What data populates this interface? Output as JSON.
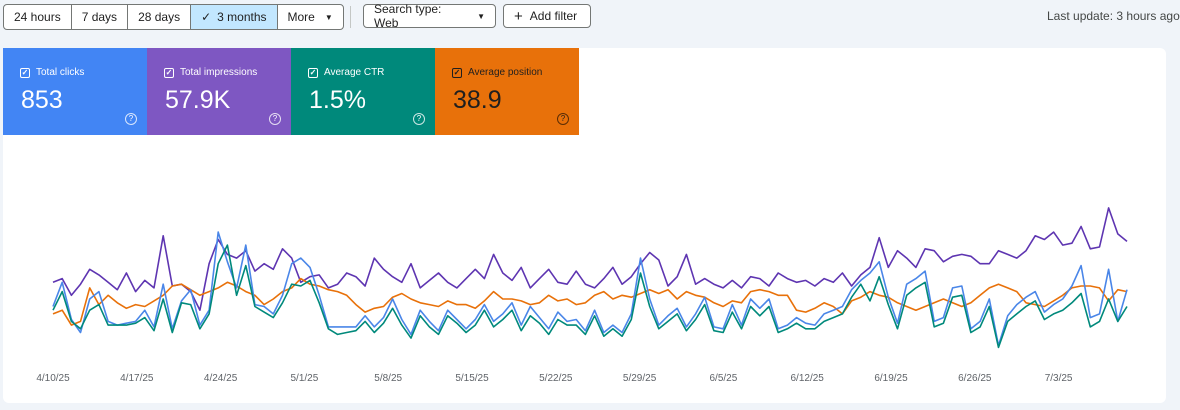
{
  "toolbar": {
    "ranges": [
      {
        "label": "24 hours",
        "selected": false
      },
      {
        "label": "7 days",
        "selected": false
      },
      {
        "label": "28 days",
        "selected": false
      },
      {
        "label": "3 months",
        "selected": true
      },
      {
        "label": "More",
        "selected": false
      }
    ],
    "search_type_label": "Search type: Web",
    "add_filter_label": "Add filter",
    "last_update": "Last update: 3 hours ago"
  },
  "metrics": [
    {
      "label": "Total clicks",
      "value": "853",
      "color": "#4285f4",
      "checked": true
    },
    {
      "label": "Total impressions",
      "value": "57.9K",
      "color": "#7e57c2",
      "checked": true
    },
    {
      "label": "Average CTR",
      "value": "1.5%",
      "color": "#00897b",
      "checked": true
    },
    {
      "label": "Average position",
      "value": "38.9",
      "color": "#e8710a",
      "checked": true
    }
  ],
  "chart_data": {
    "type": "line",
    "grid": false,
    "x_tick_labels": [
      "4/10/25",
      "4/17/25",
      "4/24/25",
      "5/1/25",
      "5/8/25",
      "5/15/25",
      "5/22/25",
      "5/29/25",
      "6/5/25",
      "6/12/25",
      "6/19/25",
      "6/26/25",
      "7/3/25"
    ],
    "series": [
      {
        "name": "Total impressions",
        "color": "#5e35b1",
        "values": [
          0.45,
          0.47,
          0.38,
          0.44,
          0.52,
          0.49,
          0.45,
          0.41,
          0.5,
          0.4,
          0.46,
          0.42,
          0.7,
          0.43,
          0.44,
          0.4,
          0.3,
          0.55,
          0.68,
          0.6,
          0.58,
          0.62,
          0.51,
          0.55,
          0.52,
          0.63,
          0.58,
          0.45,
          0.48,
          0.49,
          0.42,
          0.44,
          0.5,
          0.48,
          0.43,
          0.58,
          0.52,
          0.48,
          0.45,
          0.55,
          0.42,
          0.46,
          0.5,
          0.45,
          0.42,
          0.47,
          0.52,
          0.47,
          0.6,
          0.5,
          0.46,
          0.53,
          0.42,
          0.47,
          0.52,
          0.45,
          0.44,
          0.51,
          0.44,
          0.42,
          0.47,
          0.53,
          0.44,
          0.48,
          0.55,
          0.61,
          0.57,
          0.43,
          0.48,
          0.6,
          0.44,
          0.47,
          0.44,
          0.42,
          0.46,
          0.42,
          0.48,
          0.47,
          0.43,
          0.5,
          0.47,
          0.45,
          0.46,
          0.43,
          0.47,
          0.45,
          0.5,
          0.43,
          0.49,
          0.53,
          0.69,
          0.53,
          0.62,
          0.58,
          0.53,
          0.63,
          0.62,
          0.56,
          0.59,
          0.6,
          0.59,
          0.55,
          0.55,
          0.62,
          0.6,
          0.58,
          0.62,
          0.7,
          0.68,
          0.72,
          0.65,
          0.66,
          0.75,
          0.63,
          0.64,
          0.85,
          0.71,
          0.67
        ]
      },
      {
        "name": "Average position",
        "color": "#e8710a",
        "values": [
          0.28,
          0.3,
          0.22,
          0.24,
          0.42,
          0.33,
          0.38,
          0.34,
          0.31,
          0.33,
          0.32,
          0.35,
          0.38,
          0.43,
          0.44,
          0.41,
          0.38,
          0.4,
          0.42,
          0.45,
          0.43,
          0.4,
          0.38,
          0.33,
          0.36,
          0.4,
          0.42,
          0.47,
          0.44,
          0.43,
          0.41,
          0.4,
          0.38,
          0.33,
          0.29,
          0.31,
          0.32,
          0.37,
          0.39,
          0.36,
          0.34,
          0.33,
          0.32,
          0.35,
          0.33,
          0.33,
          0.31,
          0.35,
          0.4,
          0.36,
          0.36,
          0.35,
          0.33,
          0.34,
          0.38,
          0.35,
          0.36,
          0.33,
          0.34,
          0.38,
          0.4,
          0.36,
          0.38,
          0.37,
          0.39,
          0.41,
          0.39,
          0.41,
          0.36,
          0.4,
          0.38,
          0.37,
          0.34,
          0.32,
          0.35,
          0.34,
          0.4,
          0.41,
          0.4,
          0.38,
          0.38,
          0.3,
          0.29,
          0.31,
          0.34,
          0.32,
          0.28,
          0.35,
          0.37,
          0.4,
          0.38,
          0.37,
          0.34,
          0.32,
          0.3,
          0.32,
          0.34,
          0.36,
          0.34,
          0.32,
          0.34,
          0.38,
          0.42,
          0.44,
          0.42,
          0.4,
          0.34,
          0.33,
          0.32,
          0.35,
          0.38,
          0.42,
          0.43,
          0.43,
          0.42,
          0.35,
          0.41,
          0.4
        ]
      },
      {
        "name": "Total clicks",
        "color": "#4a86e8",
        "values": [
          0.32,
          0.45,
          0.25,
          0.18,
          0.36,
          0.4,
          0.24,
          0.22,
          0.23,
          0.24,
          0.3,
          0.21,
          0.44,
          0.2,
          0.35,
          0.41,
          0.22,
          0.3,
          0.72,
          0.56,
          0.42,
          0.65,
          0.33,
          0.32,
          0.28,
          0.38,
          0.55,
          0.58,
          0.53,
          0.38,
          0.21,
          0.21,
          0.21,
          0.21,
          0.27,
          0.21,
          0.26,
          0.36,
          0.25,
          0.17,
          0.3,
          0.24,
          0.19,
          0.3,
          0.25,
          0.2,
          0.25,
          0.33,
          0.24,
          0.28,
          0.34,
          0.22,
          0.32,
          0.26,
          0.2,
          0.29,
          0.24,
          0.25,
          0.19,
          0.3,
          0.18,
          0.22,
          0.18,
          0.28,
          0.58,
          0.36,
          0.22,
          0.27,
          0.31,
          0.21,
          0.28,
          0.37,
          0.21,
          0.2,
          0.33,
          0.22,
          0.36,
          0.31,
          0.36,
          0.2,
          0.22,
          0.26,
          0.23,
          0.22,
          0.28,
          0.3,
          0.32,
          0.41,
          0.46,
          0.5,
          0.56,
          0.37,
          0.23,
          0.44,
          0.47,
          0.51,
          0.24,
          0.26,
          0.42,
          0.43,
          0.2,
          0.24,
          0.36,
          0.11,
          0.27,
          0.33,
          0.37,
          0.4,
          0.29,
          0.33,
          0.36,
          0.43,
          0.54,
          0.26,
          0.28,
          0.52,
          0.24,
          0.41
        ]
      },
      {
        "name": "Average CTR",
        "color": "#00897b",
        "values": [
          0.3,
          0.4,
          0.24,
          0.2,
          0.3,
          0.33,
          0.22,
          0.22,
          0.22,
          0.23,
          0.26,
          0.19,
          0.36,
          0.18,
          0.34,
          0.33,
          0.2,
          0.28,
          0.55,
          0.65,
          0.38,
          0.54,
          0.32,
          0.29,
          0.26,
          0.34,
          0.44,
          0.43,
          0.46,
          0.34,
          0.2,
          0.17,
          0.18,
          0.19,
          0.24,
          0.18,
          0.23,
          0.31,
          0.22,
          0.15,
          0.27,
          0.21,
          0.17,
          0.27,
          0.23,
          0.18,
          0.22,
          0.3,
          0.21,
          0.25,
          0.3,
          0.19,
          0.27,
          0.23,
          0.17,
          0.25,
          0.22,
          0.22,
          0.17,
          0.27,
          0.16,
          0.2,
          0.16,
          0.25,
          0.5,
          0.32,
          0.2,
          0.24,
          0.28,
          0.19,
          0.25,
          0.33,
          0.19,
          0.18,
          0.29,
          0.2,
          0.32,
          0.27,
          0.32,
          0.18,
          0.2,
          0.23,
          0.2,
          0.2,
          0.24,
          0.26,
          0.28,
          0.37,
          0.44,
          0.35,
          0.48,
          0.33,
          0.2,
          0.38,
          0.42,
          0.45,
          0.21,
          0.23,
          0.37,
          0.38,
          0.18,
          0.21,
          0.32,
          0.1,
          0.24,
          0.28,
          0.32,
          0.35,
          0.25,
          0.28,
          0.3,
          0.34,
          0.39,
          0.21,
          0.24,
          0.36,
          0.24,
          0.32
        ]
      }
    ]
  }
}
